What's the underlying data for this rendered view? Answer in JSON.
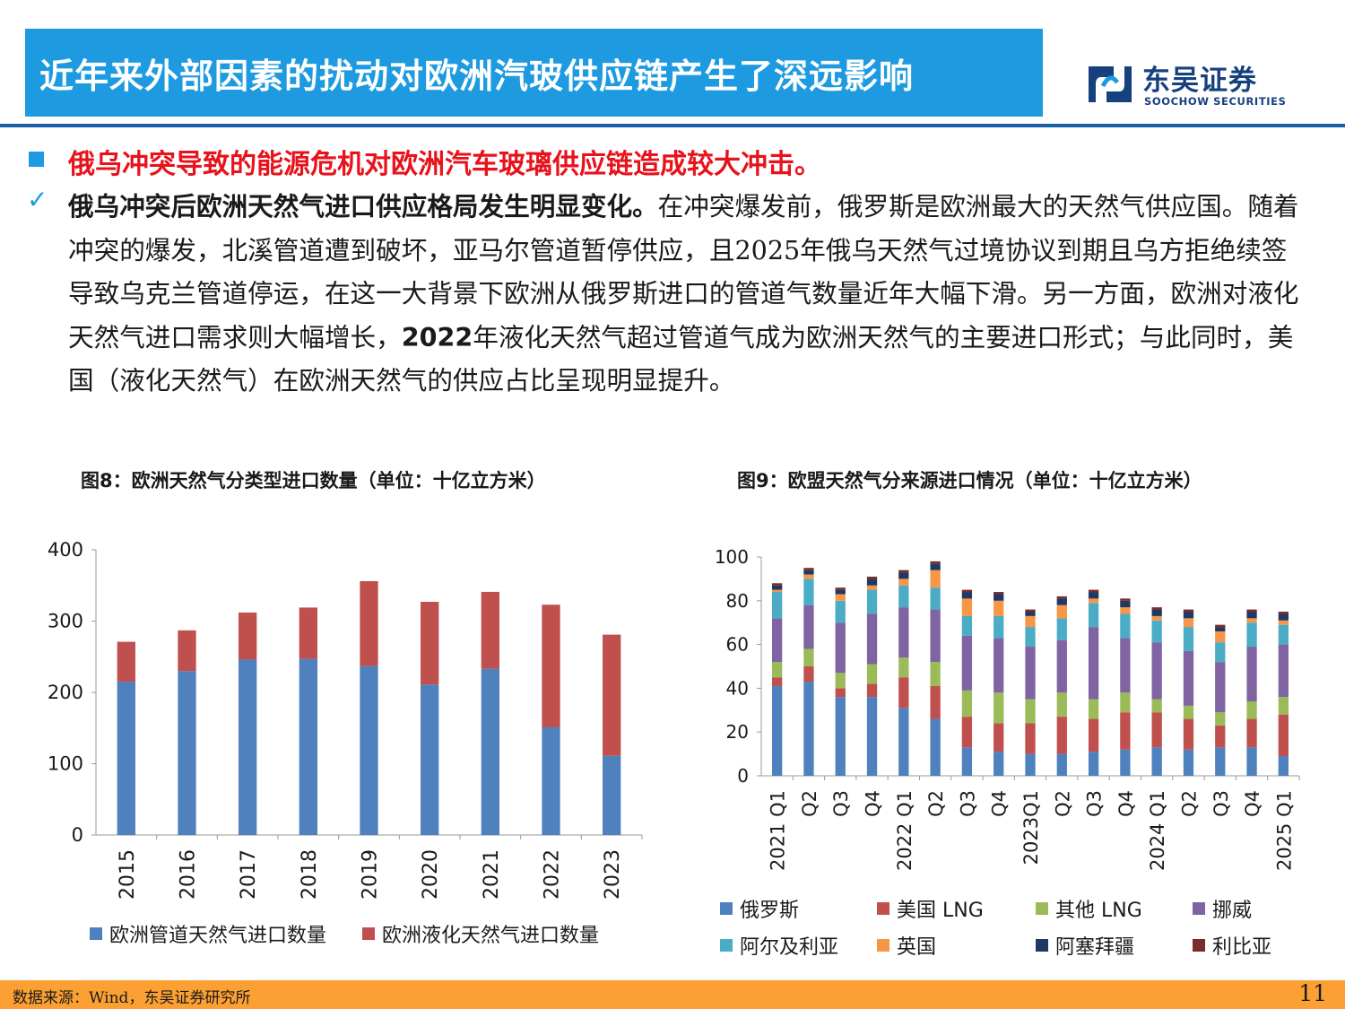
{
  "header": {
    "title": "近年来外部因素的扰动对欧洲汽玻供应链产生了深远影响",
    "logo_cn": "东吴证券",
    "logo_en": "SOOCHOW SECURITIES"
  },
  "headline": "俄乌冲突导致的能源危机对欧洲汽车玻璃供应链造成较大冲击。",
  "body": {
    "bold_lead": "俄乌冲突后欧洲天然气进口供应格局发生明显变化。",
    "text_1": "在冲突爆发前，俄罗斯是欧洲最大的天然气供应国。随着冲突的爆发，北溪管道遭到破坏，亚马尔管道暂停供应，且2025年俄乌天然气过境协议到期且乌方拒绝续签导致乌克兰管道停运，在这一大背景下欧洲从俄罗斯进口的管道气数量近年大幅下滑。另一方面，欧洲对液化天然气进口需求则大幅增长，",
    "text_2": "2022",
    "text_3": "年液化天然气超过管道气成为欧洲天然气的主要进口形式；与此同时，美国（液化天然气）在欧洲天然气的供应占比呈现明显提升。"
  },
  "fig8_caption": "图8：欧洲天然气分类型进口数量（单位：十亿立方米）",
  "fig9_caption": "图9：欧盟天然气分来源进口情况（单位：十亿立方米）",
  "footer": {
    "source": "数据来源：Wind，东吴证券研究所",
    "page": "11"
  },
  "colors": {
    "title_bg": "#1e9be0",
    "headline": "#e8121c",
    "footer_bg": "#fda033",
    "brand_navy": "#16407e"
  },
  "chart_data": [
    {
      "type": "bar",
      "stacked": true,
      "categories": [
        "2015",
        "2016",
        "2017",
        "2018",
        "2019",
        "2020",
        "2021",
        "2022",
        "2023"
      ],
      "series": [
        {
          "name": "欧洲管道天然气进口数量",
          "color": "#4e81bd",
          "values": [
            215,
            230,
            246,
            247,
            237,
            211,
            233,
            151,
            111
          ]
        },
        {
          "name": "欧洲液化天然气进口数量",
          "color": "#c0504d",
          "values": [
            56,
            57,
            66,
            72,
            119,
            116,
            108,
            172,
            170
          ]
        }
      ],
      "yticks": [
        "0",
        "100",
        "200",
        "300",
        "400"
      ],
      "ylim": [
        0,
        400
      ],
      "grid": false,
      "legend_position": "bottom"
    },
    {
      "type": "bar",
      "stacked": true,
      "categories": [
        "2021 Q1",
        "Q2",
        "Q3",
        "Q4",
        "2022 Q1",
        "Q2",
        "Q3",
        "Q4",
        "2023Q1",
        "Q2",
        "Q3",
        "Q4",
        "2024 Q1",
        "Q2",
        "Q3",
        "Q4",
        "2025 Q1"
      ],
      "series": [
        {
          "name": "俄罗斯",
          "color": "#4e81bd",
          "values": [
            41,
            43,
            36,
            36,
            31,
            26,
            13,
            11,
            10,
            10,
            11,
            12,
            13,
            12,
            13,
            13,
            9
          ]
        },
        {
          "name": "美国 LNG",
          "color": "#c0504d",
          "values": [
            4,
            7,
            4,
            6,
            14,
            15,
            14,
            13,
            14,
            17,
            15,
            17,
            16,
            14,
            10,
            13,
            19
          ]
        },
        {
          "name": "其他 LNG",
          "color": "#9bbb59",
          "values": [
            7,
            8,
            7,
            9,
            9,
            11,
            12,
            14,
            11,
            11,
            9,
            9,
            6,
            6,
            6,
            8,
            8
          ]
        },
        {
          "name": "挪威",
          "color": "#8064a2",
          "values": [
            20,
            20,
            23,
            23,
            23,
            24,
            25,
            25,
            24,
            24,
            33,
            25,
            26,
            25,
            23,
            25,
            24
          ]
        },
        {
          "name": "阿尔及利亚",
          "color": "#4bacc6",
          "values": [
            12,
            12,
            10,
            11,
            10,
            10,
            9,
            10,
            9,
            10,
            11,
            11,
            10,
            11,
            9,
            11,
            9
          ]
        },
        {
          "name": "英国",
          "color": "#f79646",
          "values": [
            1,
            2,
            3,
            2,
            3,
            8,
            8,
            7,
            5,
            6,
            2,
            3,
            2,
            4,
            5,
            2,
            2
          ]
        },
        {
          "name": "阿塞拜疆",
          "color": "#1f3864",
          "values": [
            2,
            2,
            2,
            3,
            3,
            3,
            3,
            3,
            2,
            3,
            3,
            3,
            3,
            3,
            2,
            3,
            3
          ]
        },
        {
          "name": "利比亚",
          "color": "#7b2c2a",
          "values": [
            1,
            1,
            1,
            1,
            1,
            1,
            1,
            1,
            1,
            1,
            1,
            1,
            1,
            1,
            1,
            1,
            1
          ]
        }
      ],
      "yticks": [
        "0",
        "20",
        "40",
        "60",
        "80",
        "100"
      ],
      "ylim": [
        0,
        100
      ],
      "grid": false,
      "legend_position": "bottom"
    }
  ]
}
